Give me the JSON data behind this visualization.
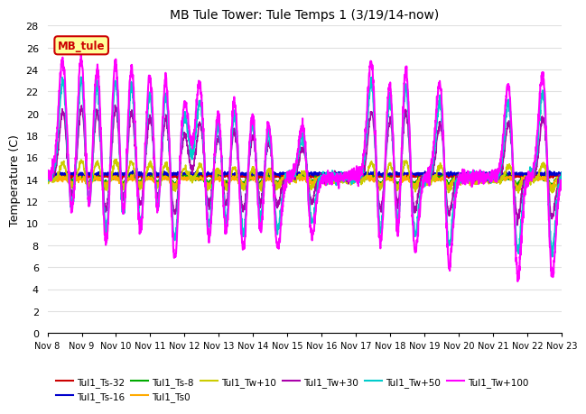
{
  "title": "MB Tule Tower: Tule Temps 1 (3/19/14-now)",
  "ylabel": "Temperature (C)",
  "xlabel": "",
  "ylim": [
    0,
    28
  ],
  "yticks": [
    0,
    2,
    4,
    6,
    8,
    10,
    12,
    14,
    16,
    18,
    20,
    22,
    24,
    26,
    28
  ],
  "x_tick_labels": [
    "Nov 8",
    "Nov 9",
    "Nov 10",
    "Nov 11",
    "Nov 12",
    "Nov 13",
    "Nov 14",
    "Nov 15",
    "Nov 16",
    "Nov 17",
    "Nov 18",
    "Nov 19",
    "Nov 20",
    "Nov 21",
    "Nov 22",
    "Nov 23"
  ],
  "legend_label": "MB_tule",
  "series": {
    "Tul1_Ts-32": {
      "color": "#cc0000",
      "lw": 1.2
    },
    "Tul1_Ts-16": {
      "color": "#0000cc",
      "lw": 1.2
    },
    "Tul1_Ts-8": {
      "color": "#00aa00",
      "lw": 1.2
    },
    "Tul1_Ts0": {
      "color": "#ffaa00",
      "lw": 1.2
    },
    "Tul1_Tw+10": {
      "color": "#cccc00",
      "lw": 1.2
    },
    "Tul1_Tw+30": {
      "color": "#aa00aa",
      "lw": 1.2
    },
    "Tul1_Tw+50": {
      "color": "#00cccc",
      "lw": 1.5
    },
    "Tul1_Tw+100": {
      "color": "#ff00ff",
      "lw": 1.5
    }
  },
  "background_color": "#ffffff",
  "grid_color": "#e0e0e0",
  "n_days": 15,
  "base_temp": 14.2,
  "spike_up_times": [
    0.45,
    1.0,
    1.45,
    2.0,
    2.45,
    3.0,
    3.45,
    4.0,
    4.45,
    5.0,
    5.45,
    6.0,
    6.45,
    7.45,
    9.45,
    10.0,
    10.45,
    11.45,
    13.45,
    14.45
  ],
  "spike_up_magenta": [
    11,
    12,
    11,
    12,
    11,
    10.5,
    10,
    7,
    9,
    7,
    8,
    7,
    6,
    5,
    11,
    10,
    11,
    9,
    9,
    10
  ],
  "spike_dn_times": [
    0.7,
    1.2,
    1.7,
    2.2,
    2.7,
    3.2,
    3.7,
    4.7,
    5.2,
    5.7,
    6.2,
    6.7,
    7.7,
    9.7,
    10.2,
    10.7,
    11.7,
    13.7,
    14.7
  ],
  "spike_dn_magenta": [
    5,
    7,
    8,
    8,
    7,
    7,
    9,
    7,
    8,
    8,
    7.5,
    7,
    6,
    8,
    9,
    8,
    9,
    10,
    10
  ]
}
